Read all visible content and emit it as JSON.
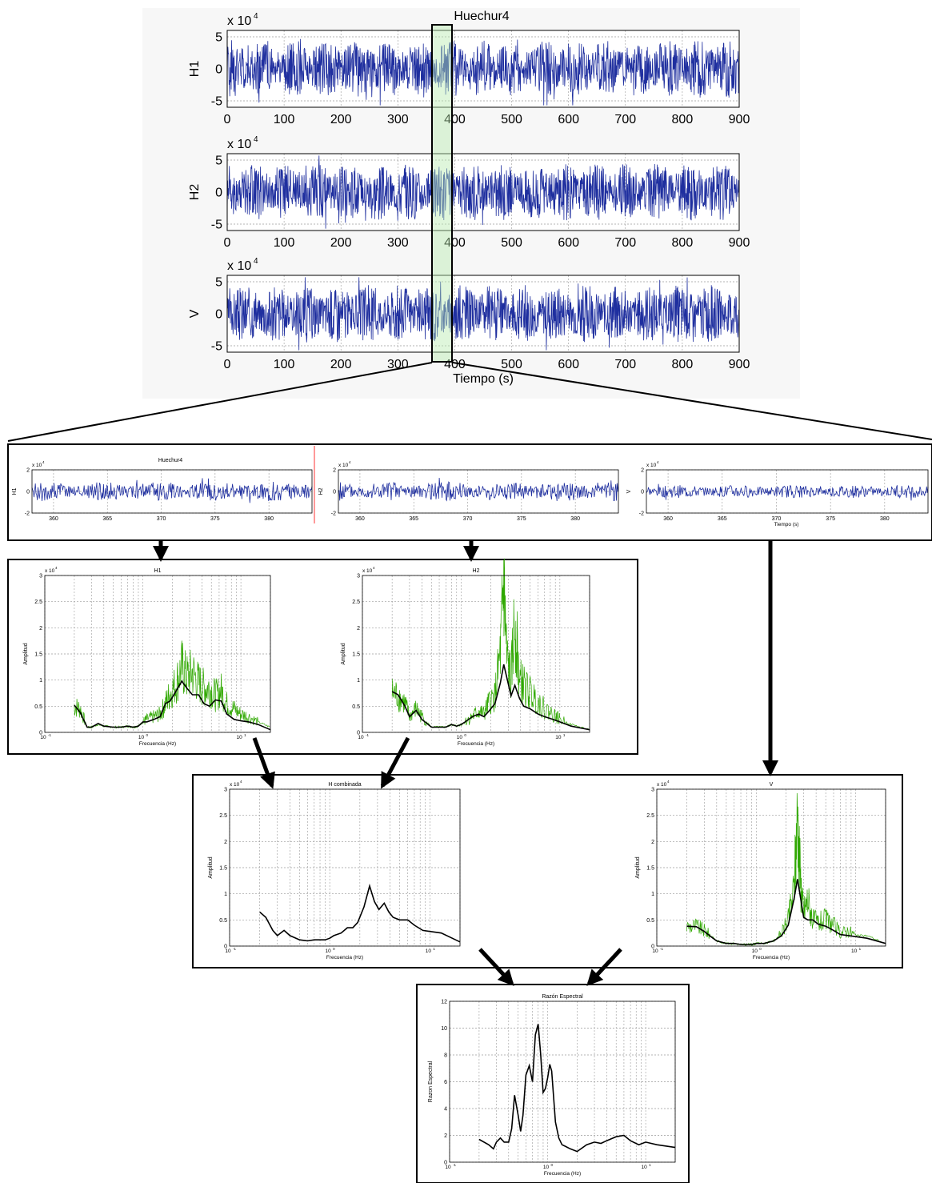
{
  "chart_data": [
    {
      "id": "top-h1",
      "type": "line",
      "title": "Huechur4",
      "ylabel": "H1",
      "exponent_base": "x 10",
      "exponent": "4",
      "xlim": [
        0,
        900
      ],
      "ylim": [
        -6,
        6
      ],
      "xticks": [
        "0",
        "100",
        "200",
        "300",
        "400",
        "500",
        "600",
        "700",
        "800",
        "900"
      ],
      "yticks": [
        "5",
        "0",
        "-5"
      ],
      "series": [
        {
          "color": "#1f2f9f",
          "kind": "noise",
          "amp": 4.5,
          "seed": 1
        }
      ]
    },
    {
      "id": "top-h2",
      "type": "line",
      "ylabel": "H2",
      "exponent_base": "x 10",
      "exponent": "4",
      "xlim": [
        0,
        900
      ],
      "ylim": [
        -6,
        6
      ],
      "xticks": [
        "0",
        "100",
        "200",
        "300",
        "400",
        "500",
        "600",
        "700",
        "800",
        "900"
      ],
      "yticks": [
        "5",
        "0",
        "-5"
      ],
      "series": [
        {
          "color": "#1f2f9f",
          "kind": "noise",
          "amp": 4.5,
          "seed": 2
        }
      ]
    },
    {
      "id": "top-v",
      "type": "line",
      "ylabel": "V",
      "xlabel": "Tiempo (s)",
      "exponent_base": "x 10",
      "exponent": "4",
      "xlim": [
        0,
        900
      ],
      "ylim": [
        -6,
        6
      ],
      "xticks": [
        "0",
        "100",
        "200",
        "300",
        "400",
        "500",
        "600",
        "700",
        "800",
        "900"
      ],
      "yticks": [
        "5",
        "0",
        "-5"
      ],
      "series": [
        {
          "color": "#1f2f9f",
          "kind": "noise",
          "amp": 4.5,
          "seed": 3
        }
      ]
    },
    {
      "id": "zoom-h1",
      "type": "line",
      "title": "Huechur4",
      "ylabel": "H1",
      "exponent_base": "x 10",
      "exponent": "4",
      "xlim": [
        358,
        384
      ],
      "ylim": [
        -2,
        2
      ],
      "xticks": [
        "360",
        "365",
        "370",
        "375",
        "380"
      ],
      "yticks": [
        "2",
        "0",
        "-2"
      ],
      "series": [
        {
          "color": "#1f2f9f",
          "kind": "noise",
          "amp": 0.9,
          "seed": 4
        }
      ]
    },
    {
      "id": "zoom-h2",
      "type": "line",
      "ylabel": "H2",
      "exponent_base": "x 10",
      "exponent": "4",
      "xlim": [
        358,
        384
      ],
      "ylim": [
        -2,
        2
      ],
      "xticks": [
        "360",
        "365",
        "370",
        "375",
        "380"
      ],
      "yticks": [
        "2",
        "0",
        "-2"
      ],
      "series": [
        {
          "color": "#1f2f9f",
          "kind": "noise",
          "amp": 0.9,
          "seed": 5
        }
      ]
    },
    {
      "id": "zoom-v",
      "type": "line",
      "ylabel": "V",
      "xlabel": "Tiempo (s)",
      "exponent_base": "x 10",
      "exponent": "4",
      "xlim": [
        358,
        384
      ],
      "ylim": [
        -2,
        2
      ],
      "xticks": [
        "360",
        "365",
        "370",
        "375",
        "380"
      ],
      "yticks": [
        "2",
        "0",
        "-2"
      ],
      "series": [
        {
          "color": "#1f2f9f",
          "kind": "noise",
          "amp": 0.6,
          "seed": 6
        }
      ]
    },
    {
      "id": "spec-h1",
      "type": "line",
      "title": "H1",
      "xscale": "log",
      "ylabel": "Amplitud",
      "xlabel": "Frecuencia (Hz)",
      "exponent_base": "x 10",
      "exponent": "4",
      "xlim": [
        0.1,
        20
      ],
      "ylim": [
        0,
        3
      ],
      "xtick_labels": [
        "10",
        "10",
        "10"
      ],
      "xtick_exponents": [
        "-1",
        "0",
        "1"
      ],
      "yticks": [
        "0",
        "0.5",
        "1",
        "1.5",
        "2",
        "2.5",
        "3"
      ],
      "series": [
        {
          "name": "",
          "color": "#2fa800",
          "kind": "raw-spectrum",
          "seed": 7,
          "x": [
            0.2,
            0.23,
            0.27,
            0.3,
            0.35,
            0.4,
            0.5,
            0.6,
            0.7,
            0.8,
            0.9,
            1.0,
            1.1,
            1.3,
            1.5,
            1.7,
            1.9,
            2.2,
            2.5,
            2.8,
            3.2,
            3.7,
            4.2,
            4.8,
            5.5,
            6.3,
            7.2,
            8.5,
            10,
            12,
            15,
            20
          ],
          "y": [
            0.5,
            0.45,
            0.1,
            0.1,
            0.15,
            0.12,
            0.1,
            0.1,
            0.12,
            0.1,
            0.12,
            0.2,
            0.25,
            0.3,
            0.35,
            0.55,
            0.75,
            0.95,
            1.25,
            1.05,
            1.15,
            0.95,
            0.85,
            0.85,
            0.7,
            0.8,
            0.55,
            0.45,
            0.35,
            0.3,
            0.2,
            0.1
          ]
        },
        {
          "name": "",
          "color": "#000000",
          "kind": "smooth",
          "x": [
            0.2,
            0.23,
            0.27,
            0.3,
            0.35,
            0.4,
            0.5,
            0.6,
            0.7,
            0.8,
            0.9,
            1.0,
            1.1,
            1.3,
            1.5,
            1.7,
            1.9,
            2.2,
            2.5,
            2.8,
            3.2,
            3.7,
            4.2,
            4.8,
            5.5,
            6.3,
            7.2,
            8.5,
            10,
            12,
            15,
            20
          ],
          "y": [
            0.52,
            0.38,
            0.1,
            0.1,
            0.17,
            0.12,
            0.1,
            0.1,
            0.12,
            0.1,
            0.12,
            0.2,
            0.2,
            0.25,
            0.3,
            0.55,
            0.6,
            0.8,
            0.98,
            0.85,
            0.72,
            0.72,
            0.55,
            0.5,
            0.62,
            0.6,
            0.35,
            0.25,
            0.22,
            0.2,
            0.15,
            0.05
          ]
        }
      ]
    },
    {
      "id": "spec-h2",
      "type": "line",
      "title": "H2",
      "xscale": "log",
      "ylabel": "Amplitud",
      "xlabel": "Frecuencia (Hz)",
      "exponent_base": "x 10",
      "exponent": "4",
      "xlim": [
        0.1,
        20
      ],
      "ylim": [
        0,
        3
      ],
      "xtick_labels": [
        "10",
        "10",
        "10"
      ],
      "xtick_exponents": [
        "-1",
        "0",
        "1"
      ],
      "yticks": [
        "0",
        "0.5",
        "1",
        "1.5",
        "2",
        "2.5",
        "3"
      ],
      "series": [
        {
          "name": "",
          "color": "#2fa800",
          "kind": "raw-spectrum",
          "seed": 8,
          "x": [
            0.2,
            0.23,
            0.27,
            0.3,
            0.35,
            0.4,
            0.5,
            0.6,
            0.7,
            0.8,
            0.9,
            1.0,
            1.1,
            1.3,
            1.5,
            1.7,
            1.9,
            2.2,
            2.5,
            2.7,
            2.9,
            3.2,
            3.5,
            3.9,
            4.3,
            5,
            6,
            7,
            8.5,
            10,
            13,
            20
          ],
          "y": [
            0.75,
            0.7,
            0.55,
            0.3,
            0.45,
            0.3,
            0.1,
            0.1,
            0.1,
            0.15,
            0.12,
            0.15,
            0.2,
            0.3,
            0.4,
            0.35,
            0.55,
            0.7,
            1.5,
            2.85,
            1.4,
            1.0,
            2.2,
            1.0,
            0.9,
            0.75,
            0.6,
            0.45,
            0.35,
            0.25,
            0.15,
            0.05
          ]
        },
        {
          "name": "",
          "color": "#000000",
          "kind": "smooth",
          "x": [
            0.2,
            0.23,
            0.27,
            0.3,
            0.35,
            0.4,
            0.5,
            0.6,
            0.7,
            0.8,
            0.9,
            1.0,
            1.1,
            1.3,
            1.5,
            1.7,
            1.9,
            2.2,
            2.5,
            2.7,
            2.9,
            3.2,
            3.5,
            3.9,
            4.3,
            5,
            6,
            7,
            8.5,
            10,
            13,
            20
          ],
          "y": [
            0.78,
            0.72,
            0.5,
            0.3,
            0.42,
            0.25,
            0.1,
            0.1,
            0.1,
            0.15,
            0.12,
            0.15,
            0.2,
            0.3,
            0.35,
            0.3,
            0.4,
            0.55,
            0.95,
            1.3,
            1.05,
            0.7,
            0.9,
            0.65,
            0.5,
            0.45,
            0.35,
            0.3,
            0.25,
            0.2,
            0.12,
            0.05
          ]
        }
      ]
    },
    {
      "id": "spec-hc",
      "type": "line",
      "title": "H combinada",
      "xscale": "log",
      "ylabel": "Amplitud",
      "xlabel": "Frecuencia (Hz)",
      "exponent_base": "x 10",
      "exponent": "4",
      "xlim": [
        0.1,
        20
      ],
      "ylim": [
        0,
        3
      ],
      "xtick_labels": [
        "10",
        "10",
        "10"
      ],
      "xtick_exponents": [
        "-1",
        "0",
        "1"
      ],
      "yticks": [
        "0",
        "0.5",
        "1",
        "1.5",
        "2",
        "2.5",
        "3"
      ],
      "series": [
        {
          "name": "",
          "color": "#000000",
          "kind": "smooth",
          "x": [
            0.2,
            0.23,
            0.27,
            0.3,
            0.35,
            0.4,
            0.5,
            0.6,
            0.7,
            0.8,
            0.9,
            1.0,
            1.1,
            1.3,
            1.5,
            1.7,
            1.9,
            2.2,
            2.5,
            2.8,
            3.1,
            3.5,
            3.9,
            4.3,
            5,
            6,
            7,
            8.5,
            10,
            13,
            20
          ],
          "y": [
            0.65,
            0.55,
            0.3,
            0.2,
            0.3,
            0.2,
            0.12,
            0.1,
            0.12,
            0.12,
            0.12,
            0.15,
            0.2,
            0.25,
            0.35,
            0.35,
            0.45,
            0.75,
            1.15,
            0.85,
            0.7,
            0.82,
            0.65,
            0.55,
            0.5,
            0.5,
            0.4,
            0.3,
            0.28,
            0.25,
            0.08
          ]
        }
      ]
    },
    {
      "id": "spec-v",
      "type": "line",
      "title": "V",
      "xscale": "log",
      "ylabel": "Amplitud",
      "xlabel": "Frecuencia (Hz)",
      "exponent_base": "x 10",
      "exponent": "4",
      "xlim": [
        0.1,
        20
      ],
      "ylim": [
        0,
        3
      ],
      "xtick_labels": [
        "10",
        "10",
        "10"
      ],
      "xtick_exponents": [
        "-1",
        "0",
        "1"
      ],
      "yticks": [
        "0",
        "0.5",
        "1",
        "1.5",
        "2",
        "2.5",
        "3"
      ],
      "series": [
        {
          "name": "",
          "color": "#2fa800",
          "kind": "raw-spectrum",
          "seed": 9,
          "x": [
            0.2,
            0.25,
            0.3,
            0.35,
            0.4,
            0.5,
            0.6,
            0.7,
            0.8,
            0.9,
            1.0,
            1.2,
            1.5,
            1.8,
            2.1,
            2.4,
            2.6,
            2.8,
            3.0,
            3.3,
            3.7,
            4.2,
            5,
            6,
            7,
            8.5,
            10,
            13,
            20
          ],
          "y": [
            0.38,
            0.38,
            0.3,
            0.2,
            0.1,
            0.05,
            0.05,
            0.03,
            0.03,
            0.03,
            0.05,
            0.05,
            0.1,
            0.25,
            0.5,
            1.1,
            2.55,
            1.2,
            0.65,
            0.9,
            0.5,
            0.45,
            0.5,
            0.4,
            0.25,
            0.3,
            0.2,
            0.2,
            0.05
          ]
        },
        {
          "name": "",
          "color": "#000000",
          "kind": "smooth",
          "x": [
            0.2,
            0.25,
            0.3,
            0.35,
            0.4,
            0.5,
            0.6,
            0.7,
            0.8,
            0.9,
            1.0,
            1.2,
            1.5,
            1.8,
            2.1,
            2.4,
            2.6,
            2.8,
            3.0,
            3.3,
            3.7,
            4.2,
            5,
            6,
            7,
            8.5,
            10,
            13,
            20
          ],
          "y": [
            0.38,
            0.37,
            0.28,
            0.18,
            0.1,
            0.05,
            0.05,
            0.03,
            0.03,
            0.03,
            0.05,
            0.05,
            0.1,
            0.2,
            0.4,
            0.9,
            1.28,
            0.9,
            0.55,
            0.5,
            0.5,
            0.42,
            0.38,
            0.3,
            0.22,
            0.2,
            0.18,
            0.15,
            0.05
          ]
        }
      ]
    },
    {
      "id": "ratio",
      "type": "line",
      "title": "Razón Espectral",
      "xscale": "log",
      "ylabel": "Razon Espectral",
      "xlabel": "Frecuencia (Hz)",
      "xlim": [
        0.1,
        20
      ],
      "ylim": [
        0,
        12
      ],
      "xtick_labels": [
        "10",
        "10",
        "10"
      ],
      "xtick_exponents": [
        "-1",
        "0",
        "1"
      ],
      "yticks": [
        "0",
        "2",
        "4",
        "6",
        "8",
        "10",
        "12"
      ],
      "series": [
        {
          "name": "",
          "color": "#000000",
          "kind": "smooth",
          "x": [
            0.2,
            0.25,
            0.28,
            0.3,
            0.33,
            0.36,
            0.4,
            0.43,
            0.46,
            0.5,
            0.53,
            0.56,
            0.6,
            0.65,
            0.7,
            0.75,
            0.8,
            0.85,
            0.9,
            0.95,
            1.0,
            1.05,
            1.1,
            1.2,
            1.3,
            1.4,
            1.5,
            1.7,
            2.0,
            2.5,
            3,
            3.5,
            4,
            5,
            6,
            7,
            8.5,
            10,
            13,
            20
          ],
          "y": [
            1.7,
            1.3,
            1.0,
            1.5,
            1.8,
            1.5,
            1.5,
            2.5,
            5.0,
            3.5,
            2.3,
            3.5,
            6.5,
            7.2,
            6.0,
            9.5,
            10.3,
            8.0,
            5.2,
            5.5,
            6.3,
            7.3,
            6.8,
            3.0,
            1.8,
            1.3,
            1.2,
            1.0,
            0.8,
            1.3,
            1.5,
            1.4,
            1.6,
            1.9,
            2.0,
            1.6,
            1.3,
            1.5,
            1.3,
            1.1
          ]
        }
      ]
    }
  ]
}
